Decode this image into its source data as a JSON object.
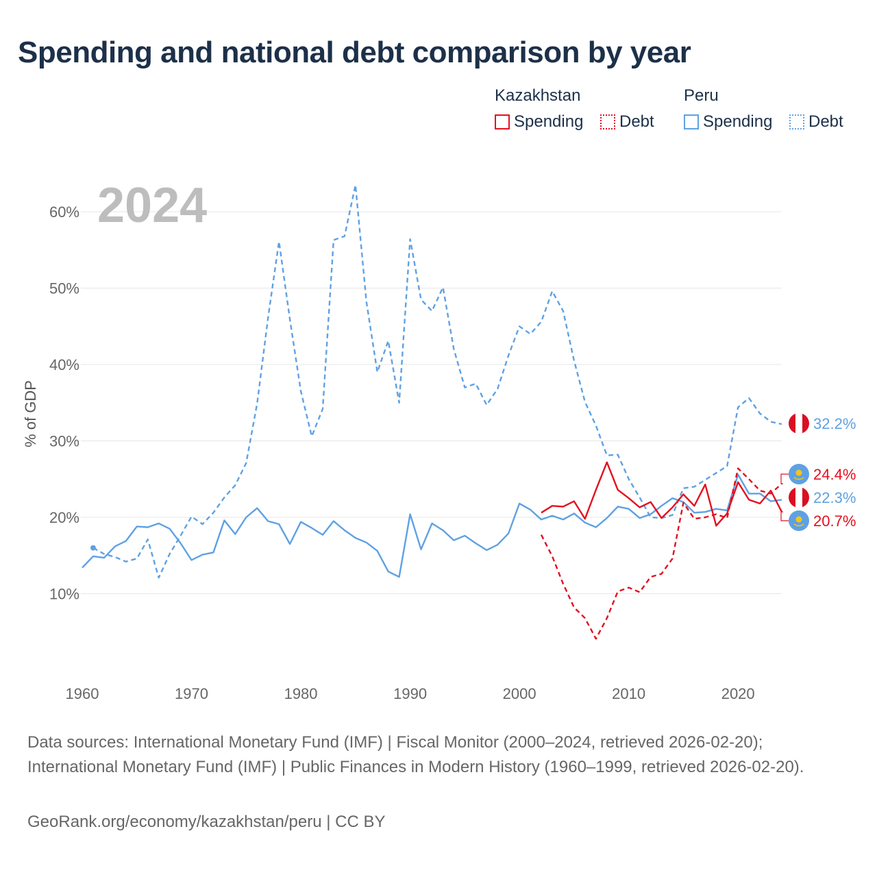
{
  "title": "Spending and national debt comparison by year",
  "legend": {
    "groups": [
      {
        "country": "Kazakhstan",
        "color": "#e3101f",
        "items": [
          {
            "label": "Spending",
            "style": "solid"
          },
          {
            "label": "Debt",
            "style": "dotted"
          }
        ]
      },
      {
        "country": "Peru",
        "color": "#5ea1e3",
        "items": [
          {
            "label": "Spending",
            "style": "solid"
          },
          {
            "label": "Debt",
            "style": "dotted"
          }
        ]
      }
    ]
  },
  "footer": {
    "sources": "Data sources: International Monetary Fund (IMF) | Fiscal Monitor (2000–2024, retrieved 2026-02-20); International Monetary Fund (IMF) | Public Finances in Modern History (1960–1999, retrieved 2026-02-20).",
    "credit": "GeoRank.org/economy/kazakhstan/peru | CC BY"
  },
  "chart_data": {
    "type": "line",
    "current_year": "2024",
    "ylabel": "% of GDP",
    "xlim": [
      1960,
      2024
    ],
    "ylim": [
      0,
      65
    ],
    "x_ticks": [
      1960,
      1970,
      1980,
      1990,
      2000,
      2010,
      2020
    ],
    "y_ticks": [
      10,
      20,
      30,
      40,
      50,
      60
    ],
    "y_tick_labels": [
      "10%",
      "20%",
      "30%",
      "40%",
      "50%",
      "60%"
    ],
    "series": [
      {
        "name": "Peru Debt",
        "country": "Peru",
        "metric": "Debt",
        "color": "#5ea1e3",
        "dash": "dashed",
        "start_year": 1961,
        "values": [
          16.0,
          15.2,
          14.8,
          14.2,
          14.6,
          17.1,
          12.1,
          15.2,
          17.6,
          20.1,
          19.1,
          20.6,
          22.6,
          24.2,
          27.1,
          34.9,
          46.1,
          56.1,
          45.9,
          36.5,
          30.6,
          34.2,
          56.3,
          56.8,
          63.5,
          48.2,
          39.0,
          43.1,
          35.0,
          56.4,
          48.5,
          47.0,
          50.1,
          42.0,
          37.0,
          37.5,
          34.7,
          36.8,
          41.2,
          45.0,
          44.0,
          45.6,
          49.6,
          47.0,
          40.5,
          35.1,
          32.0,
          28.1,
          28.2,
          25.0,
          22.6,
          20.0,
          19.9,
          20.3,
          23.8,
          24.0,
          24.9,
          25.8,
          26.7,
          34.4,
          35.6,
          33.6,
          32.5,
          32.2
        ]
      },
      {
        "name": "Peru Spending",
        "country": "Peru",
        "metric": "Spending",
        "color": "#5ea1e3",
        "dash": "solid",
        "start_year": 1960,
        "values": [
          13.4,
          14.9,
          14.7,
          16.2,
          16.9,
          18.8,
          18.7,
          19.2,
          18.5,
          16.6,
          14.4,
          15.1,
          15.4,
          19.6,
          17.8,
          20.0,
          21.2,
          19.5,
          19.1,
          16.5,
          19.4,
          18.6,
          17.7,
          19.5,
          18.3,
          17.3,
          16.7,
          15.6,
          12.9,
          12.2,
          20.4,
          15.8,
          19.2,
          18.3,
          17.0,
          17.6,
          16.6,
          15.7,
          16.4,
          17.9,
          21.8,
          21.0,
          19.7,
          20.2,
          19.7,
          20.5,
          19.3,
          18.7,
          19.9,
          21.4,
          21.1,
          19.9,
          20.4,
          21.5,
          22.5,
          22.0,
          20.6,
          20.7,
          21.1,
          20.9,
          25.6,
          23.1,
          23.1,
          22.1,
          22.3
        ]
      },
      {
        "name": "Kazakhstan Spending",
        "country": "Kazakhstan",
        "metric": "Spending",
        "color": "#e3101f",
        "dash": "solid",
        "start_year": 2002,
        "values": [
          20.6,
          21.5,
          21.4,
          22.1,
          19.8,
          23.6,
          27.2,
          23.6,
          22.5,
          21.3,
          22.0,
          19.9,
          21.3,
          23.0,
          21.5,
          24.3,
          18.9,
          20.5,
          24.6,
          22.3,
          21.8,
          23.5,
          20.7
        ]
      },
      {
        "name": "Kazakhstan Debt",
        "country": "Kazakhstan",
        "metric": "Debt",
        "color": "#e3101f",
        "dash": "dashed",
        "start_year": 2002,
        "values": [
          17.7,
          14.9,
          11.3,
          8.2,
          6.8,
          4.1,
          6.8,
          10.3,
          10.8,
          10.2,
          12.2,
          12.6,
          14.6,
          21.9,
          19.8,
          20.0,
          20.4,
          19.9,
          26.4,
          25.0,
          23.5,
          23.1,
          24.4
        ]
      }
    ],
    "end_labels": [
      {
        "series": "Peru Debt",
        "label": "32.2%",
        "color": "#5ea1e3",
        "flag": "peru"
      },
      {
        "series": "Kazakhstan Debt",
        "label": "24.4%",
        "color": "#e3101f",
        "flag": "kazakhstan"
      },
      {
        "series": "Peru Spending",
        "label": "22.3%",
        "color": "#5ea1e3",
        "flag": "peru"
      },
      {
        "series": "Kazakhstan Spending",
        "label": "20.7%",
        "color": "#e3101f",
        "flag": "kazakhstan"
      }
    ]
  }
}
